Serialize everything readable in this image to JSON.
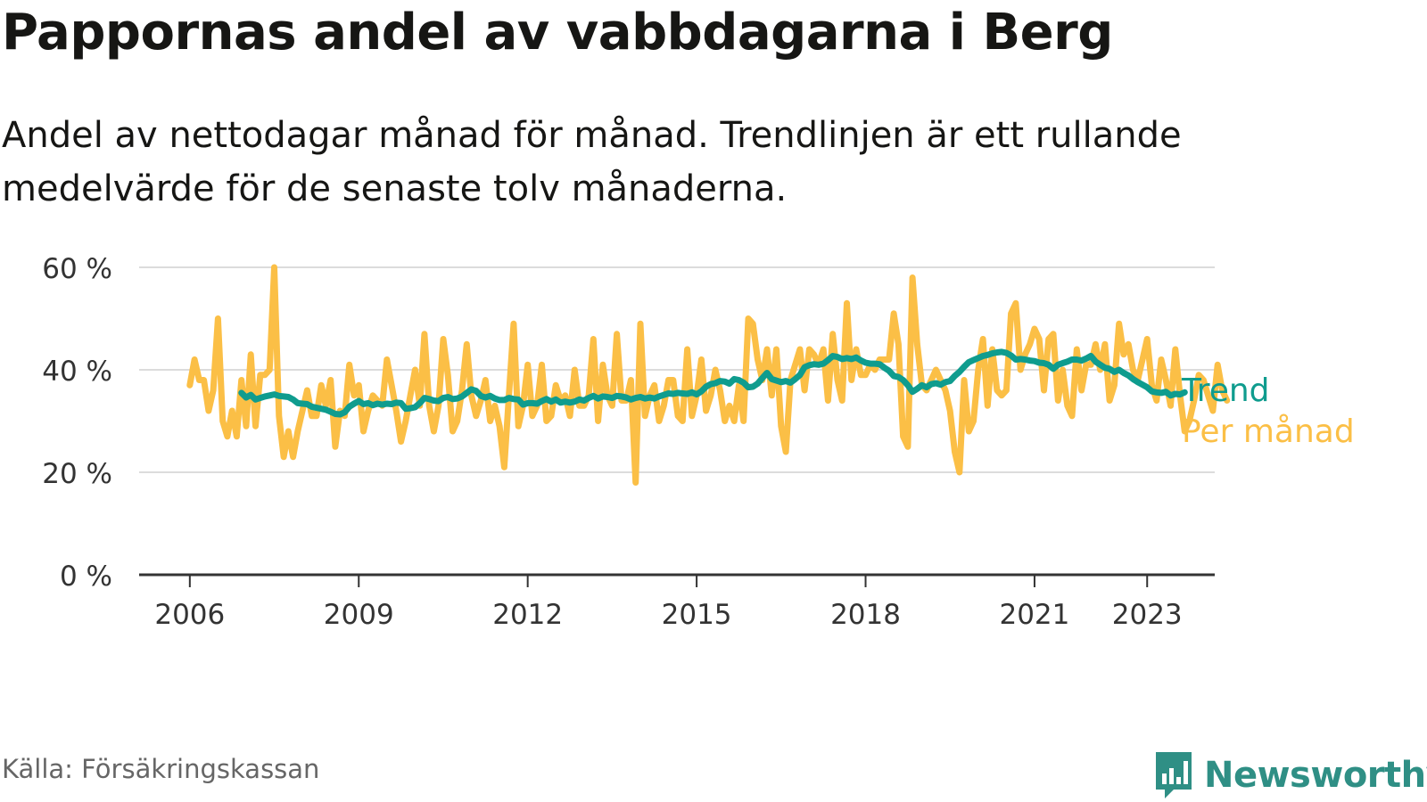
{
  "header": {
    "title": "Pappornas andel av vabbdagarna i Berg",
    "subtitle": "Andel av nettodagar månad för månad. Trendlinjen är ett rullande medelvärde för de senaste tolv månaderna."
  },
  "footer": {
    "source": "Källa: Försäkringskassan",
    "brand": "Newsworthy"
  },
  "colors": {
    "monthly": "#fbbf46",
    "trend": "#0f9c8e",
    "grid": "#dcdcdc",
    "axis": "#333333",
    "text": "#333333",
    "brand": "#2f8f85"
  },
  "chart_data": {
    "type": "line",
    "title": "Pappornas andel av vabbdagarna i Berg",
    "xlabel": "",
    "ylabel": "",
    "x_start": 2006.0,
    "step": 0.0833333,
    "xlim": [
      2005.1,
      2024.2
    ],
    "ylim": [
      0,
      60
    ],
    "y_ticks": [
      0,
      20,
      40,
      60
    ],
    "y_tick_labels": [
      "0 %",
      "20 %",
      "40 %",
      "60 %"
    ],
    "x_ticks": [
      2006,
      2009,
      2012,
      2015,
      2018,
      2021,
      2023
    ],
    "x_tick_labels": [
      "2006",
      "2009",
      "2012",
      "2015",
      "2018",
      "2021",
      "2023"
    ],
    "series": [
      {
        "name": "Per månad",
        "label": "Per månad",
        "values": [
          37,
          42,
          38,
          38,
          32,
          36,
          50,
          30,
          27,
          32,
          27,
          38,
          29,
          43,
          29,
          39,
          39,
          40,
          60,
          31,
          23,
          28,
          23,
          28,
          32,
          36,
          31,
          31,
          37,
          33,
          38,
          25,
          32,
          31,
          41,
          35,
          37,
          28,
          32,
          35,
          34,
          33,
          42,
          37,
          32,
          26,
          30,
          35,
          40,
          33,
          47,
          33,
          28,
          33,
          46,
          39,
          28,
          30,
          36,
          45,
          35,
          31,
          34,
          38,
          30,
          33,
          29,
          21,
          35,
          49,
          29,
          33,
          41,
          31,
          33,
          41,
          30,
          31,
          37,
          34,
          35,
          31,
          40,
          33,
          33,
          35,
          46,
          30,
          41,
          35,
          33,
          47,
          34,
          34,
          38,
          18,
          49,
          31,
          35,
          37,
          30,
          33,
          38,
          38,
          31,
          30,
          44,
          31,
          35,
          42,
          32,
          35,
          40,
          36,
          30,
          33,
          30,
          37,
          30,
          50,
          49,
          42,
          38,
          44,
          35,
          44,
          29,
          24,
          38,
          41,
          44,
          36,
          44,
          43,
          41,
          44,
          34,
          47,
          38,
          34,
          53,
          38,
          44,
          39,
          39,
          41,
          40,
          42,
          42,
          42,
          51,
          45,
          27,
          25,
          58,
          45,
          37,
          36,
          38,
          40,
          38,
          36,
          32,
          24,
          20,
          38,
          28,
          30,
          40,
          46,
          33,
          44,
          36,
          35,
          36,
          51,
          53,
          40,
          43,
          45,
          48,
          46,
          36,
          46,
          47,
          34,
          40,
          33,
          31,
          44,
          36,
          41,
          41,
          45,
          40,
          45,
          34,
          37,
          49,
          43,
          45,
          40,
          38,
          42,
          46,
          37,
          34,
          42,
          38,
          33,
          44,
          35,
          28,
          30,
          34,
          39,
          38,
          35,
          32,
          41,
          36,
          34
        ]
      },
      {
        "name": "Trend",
        "label": "Trend",
        "values": [
          null,
          null,
          null,
          null,
          null,
          null,
          null,
          null,
          null,
          null,
          null,
          35.5,
          34.6,
          35.1,
          34.2,
          34.5,
          34.8,
          35.0,
          35.2,
          34.9,
          34.8,
          34.7,
          34.2,
          33.5,
          33.4,
          33.3,
          32.8,
          32.6,
          32.4,
          32.2,
          31.8,
          31.4,
          31.3,
          31.7,
          32.8,
          33.4,
          33.9,
          33.3,
          33.5,
          33.1,
          33.4,
          33.2,
          33.4,
          33.3,
          33.6,
          33.5,
          32.4,
          32.5,
          32.7,
          33.5,
          34.5,
          34.3,
          34.0,
          33.9,
          34.5,
          34.7,
          34.3,
          34.4,
          34.8,
          35.5,
          36.2,
          35.9,
          34.9,
          34.6,
          34.9,
          34.4,
          34.1,
          34.1,
          34.5,
          34.3,
          34.2,
          33.2,
          33.5,
          33.5,
          33.4,
          33.9,
          34.3,
          33.8,
          34.2,
          33.6,
          33.8,
          33.6,
          33.8,
          34.2,
          34.0,
          34.5,
          34.9,
          34.4,
          34.8,
          34.7,
          34.5,
          34.9,
          34.8,
          34.6,
          34.2,
          34.5,
          34.7,
          34.4,
          34.6,
          34.4,
          34.8,
          35.1,
          35.4,
          35.3,
          35.5,
          35.4,
          35.3,
          35.6,
          35.2,
          35.8,
          36.7,
          37.2,
          37.4,
          37.8,
          37.7,
          37.3,
          38.2,
          38.0,
          37.5,
          36.6,
          36.7,
          37.3,
          38.4,
          39.4,
          38.2,
          37.9,
          37.6,
          37.8,
          37.5,
          38.2,
          39.0,
          40.5,
          40.9,
          41.1,
          41.0,
          41.2,
          41.9,
          42.7,
          42.5,
          42.1,
          42.3,
          42.1,
          42.4,
          41.8,
          41.4,
          41.2,
          41.2,
          41.1,
          40.4,
          39.8,
          38.8,
          38.6,
          38.0,
          37.0,
          35.7,
          36.3,
          37.0,
          36.6,
          37.2,
          37.4,
          37.1,
          37.6,
          37.8,
          38.8,
          39.6,
          40.6,
          41.5,
          41.9,
          42.3,
          42.7,
          42.9,
          43.2,
          43.4,
          43.5,
          43.3,
          42.8,
          42.0,
          42.1,
          42.0,
          41.8,
          41.7,
          41.4,
          41.3,
          41.0,
          40.2,
          41.0,
          41.3,
          41.6,
          42.0,
          42.0,
          41.8,
          42.2,
          42.7,
          41.6,
          41.0,
          40.4,
          40.2,
          39.6,
          40.0,
          39.4,
          38.9,
          38.2,
          37.6,
          37.1,
          36.6,
          35.8,
          35.6,
          35.5,
          35.7,
          35.0,
          35.3,
          35.2,
          35.6
        ]
      }
    ]
  }
}
